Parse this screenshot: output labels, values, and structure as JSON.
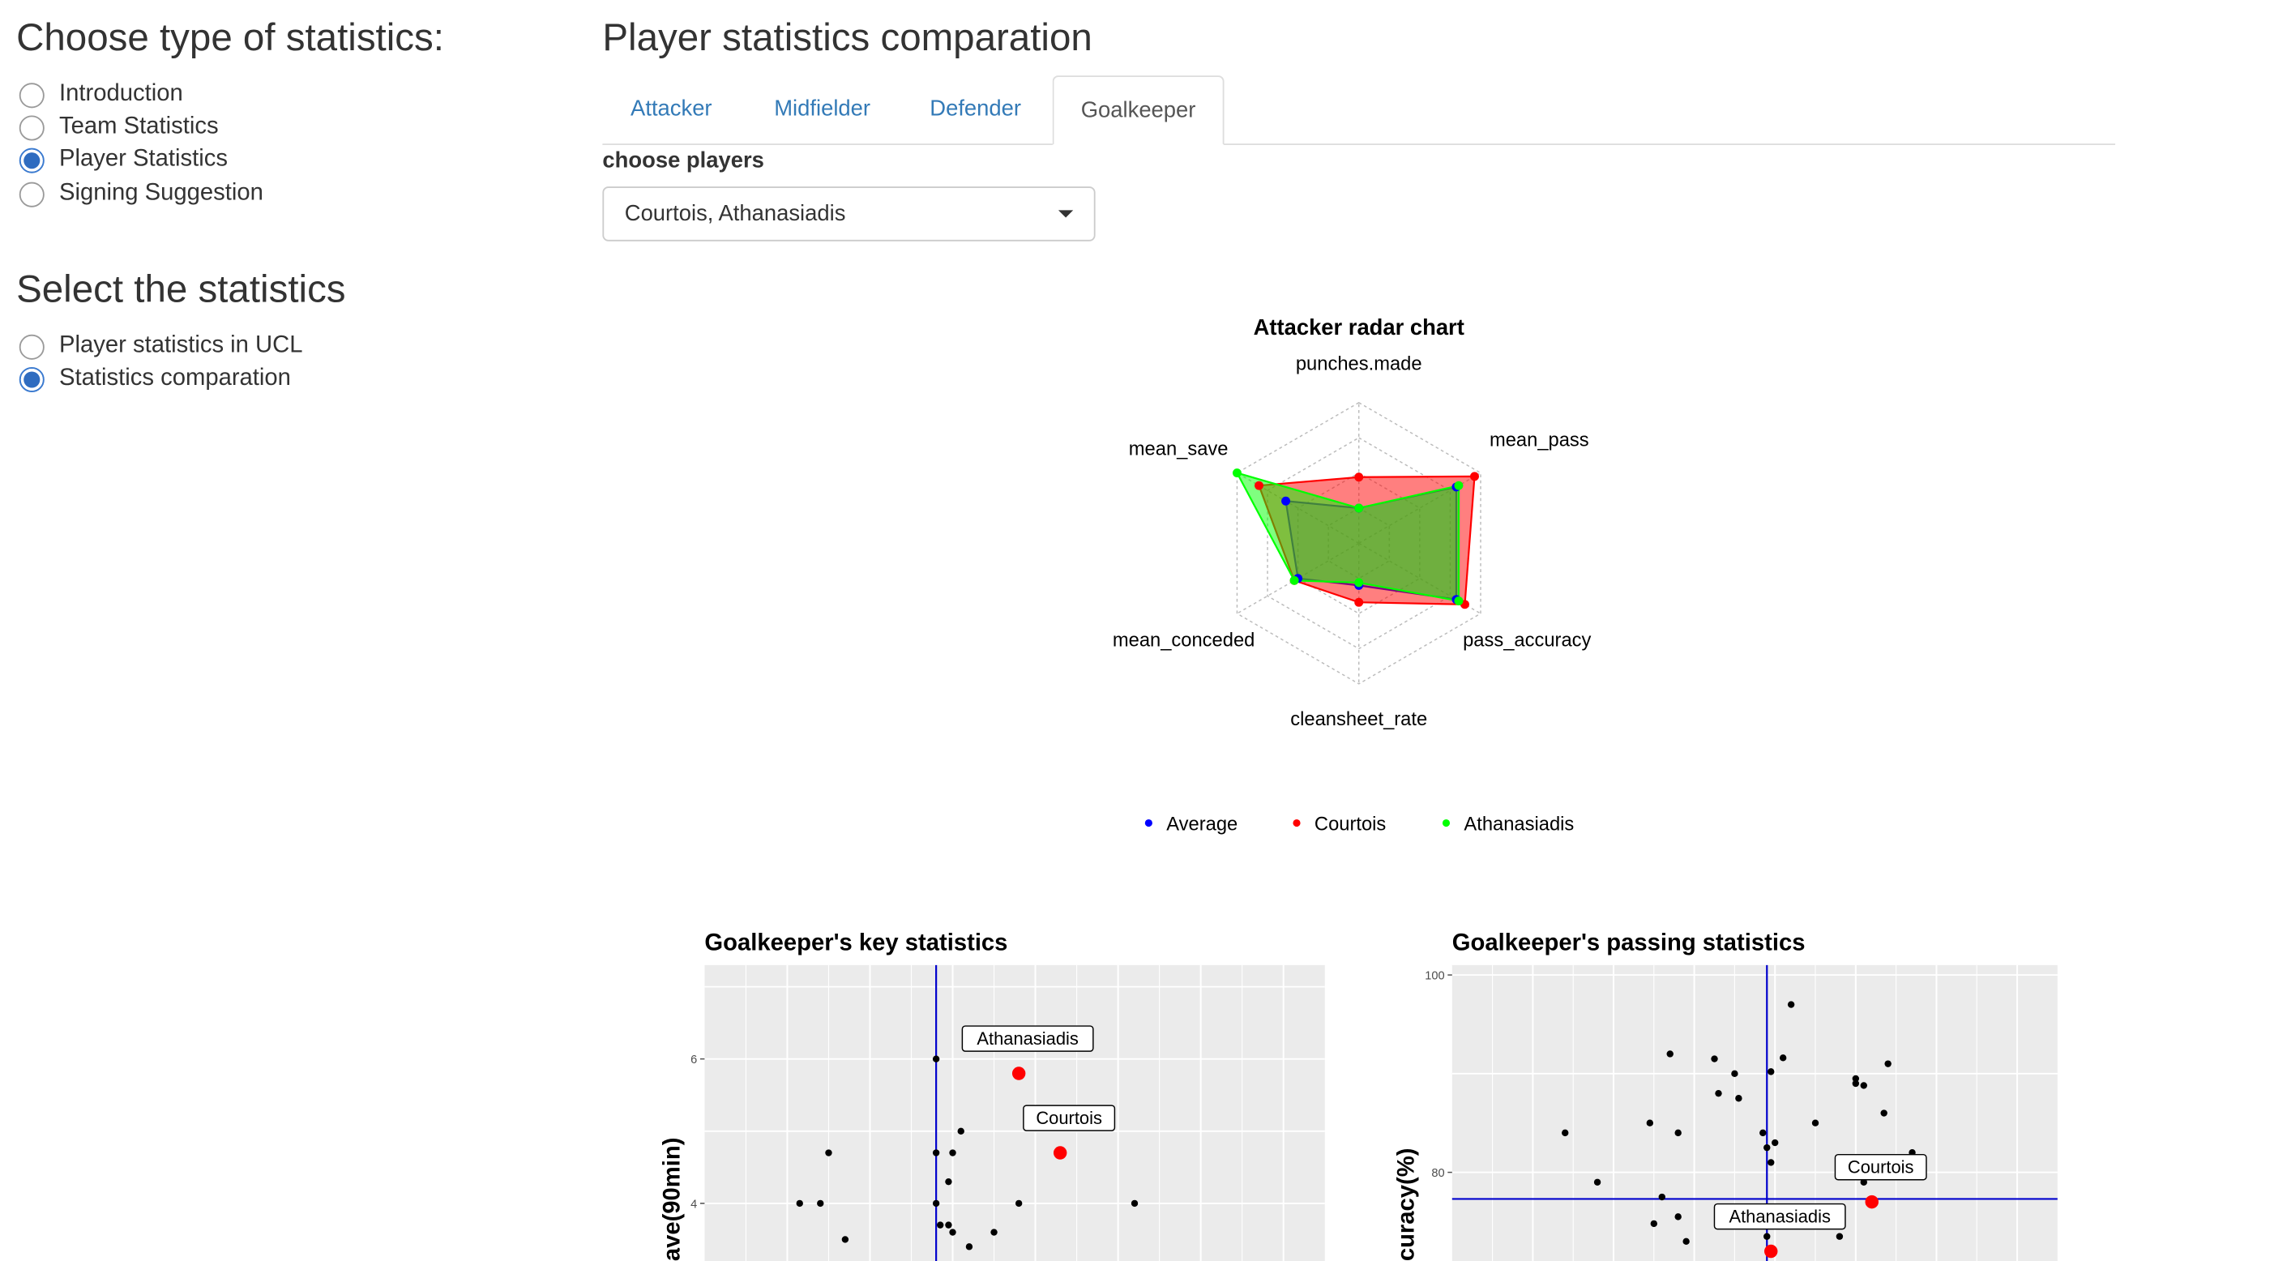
{
  "sidebar": {
    "type_heading": "Choose type of statistics:",
    "type_options": [
      {
        "label": "Introduction",
        "selected": false
      },
      {
        "label": "Team Statistics",
        "selected": false
      },
      {
        "label": "Player Statistics",
        "selected": true
      },
      {
        "label": "Signing Suggestion",
        "selected": false
      }
    ],
    "stats_heading": "Select the statistics",
    "stats_options": [
      {
        "label": "Player statistics in UCL",
        "selected": false
      },
      {
        "label": "Statistics comparation",
        "selected": true
      }
    ]
  },
  "main": {
    "title": "Player statistics comparation",
    "tabs": [
      "Attacker",
      "Midfielder",
      "Defender",
      "Goalkeeper"
    ],
    "active_tab": "Goalkeeper",
    "choose_label": "choose players",
    "select_value": "Courtois, Athanasiadis"
  },
  "colors": {
    "accent": "#337ab7",
    "radio_on": "#2f6cc0",
    "average": "#0000ff",
    "courtois": "#ff0000",
    "athanasiadis": "#00ff00",
    "panel_bg": "#ebebeb",
    "reference_line": "#0000cc"
  },
  "chart_data": [
    {
      "type": "radar",
      "title": "Attacker radar chart",
      "axes": [
        "punches.made",
        "mean_pass",
        "pass_accuracy",
        "cleansheet_rate",
        "mean_conceded",
        "mean_save"
      ],
      "rmax": 1,
      "series": [
        {
          "name": "Average",
          "values": [
            0.25,
            0.8,
            0.8,
            0.3,
            0.5,
            0.6
          ],
          "color": "#0000ff"
        },
        {
          "name": "Courtois",
          "values": [
            0.47,
            0.95,
            0.87,
            0.42,
            0.53,
            0.82
          ],
          "color": "#ff0000"
        },
        {
          "name": "Athanasiadis",
          "values": [
            0.25,
            0.82,
            0.82,
            0.28,
            0.53,
            1.0
          ],
          "color": "#00ff00"
        }
      ],
      "legend": [
        "Average",
        "Courtois",
        "Athanasiadis"
      ],
      "legend_position": "bottom"
    },
    {
      "type": "scatter",
      "title": "Goalkeeper's key statistics",
      "ylabel": "ave(90min)",
      "yticks": [
        4,
        6
      ],
      "xlim": [
        -2.2,
        5.3
      ],
      "ylim": [
        3.2,
        7.3
      ],
      "vline": 0.6,
      "points": [
        [
          0.6,
          6
        ],
        [
          0.6,
          4.7
        ],
        [
          0.6,
          4
        ],
        [
          0.65,
          3.7
        ],
        [
          0.8,
          4.7
        ],
        [
          0.9,
          5
        ],
        [
          0.75,
          4.3
        ],
        [
          1.0,
          3.4
        ],
        [
          0.8,
          3.6
        ],
        [
          1.3,
          3.6
        ],
        [
          0.75,
          3.7
        ],
        [
          1.6,
          4
        ],
        [
          -0.5,
          3.5
        ],
        [
          -0.7,
          4.7
        ],
        [
          -0.8,
          4
        ],
        [
          -1.05,
          4
        ],
        [
          3.0,
          4
        ]
      ],
      "highlights": [
        {
          "label": "Athanasiadis",
          "x": 1.6,
          "y": 5.8
        },
        {
          "label": "Courtois",
          "x": 2.1,
          "y": 4.7
        }
      ]
    },
    {
      "type": "scatter",
      "title": "Goalkeeper's passing statistics",
      "ylabel": "curacy(%)",
      "yticks": [
        80,
        100
      ],
      "xlim": [
        0.5,
        8
      ],
      "ylim": [
        71,
        101
      ],
      "vline": 4.4,
      "hline": 77.3,
      "points": [
        [
          1.9,
          84
        ],
        [
          2.3,
          79
        ],
        [
          3.2,
          92
        ],
        [
          2.95,
          85
        ],
        [
          3.3,
          84
        ],
        [
          3.75,
          91.5
        ],
        [
          3.8,
          88
        ],
        [
          4.0,
          90
        ],
        [
          4.05,
          87.5
        ],
        [
          4.45,
          90.2
        ],
        [
          4.6,
          91.6
        ],
        [
          4.7,
          97
        ],
        [
          4.35,
          84
        ],
        [
          4.4,
          82.5
        ],
        [
          4.5,
          83
        ],
        [
          4.45,
          81
        ],
        [
          3.0,
          74.8
        ],
        [
          3.1,
          77.5
        ],
        [
          3.3,
          75.5
        ],
        [
          3.4,
          73
        ],
        [
          3.8,
          75
        ],
        [
          4.8,
          76
        ],
        [
          5.0,
          85
        ],
        [
          5.5,
          89.5
        ],
        [
          5.5,
          89
        ],
        [
          5.6,
          88.8
        ],
        [
          5.85,
          86
        ],
        [
          5.9,
          91
        ],
        [
          6.2,
          82
        ],
        [
          5.7,
          81
        ],
        [
          5.6,
          79
        ],
        [
          4.4,
          73.5
        ],
        [
          5.3,
          73.5
        ]
      ],
      "highlights": [
        {
          "label": "Courtois",
          "x": 5.7,
          "y": 77
        },
        {
          "label": "Athanasiadis",
          "x": 4.45,
          "y": 72
        }
      ]
    }
  ]
}
